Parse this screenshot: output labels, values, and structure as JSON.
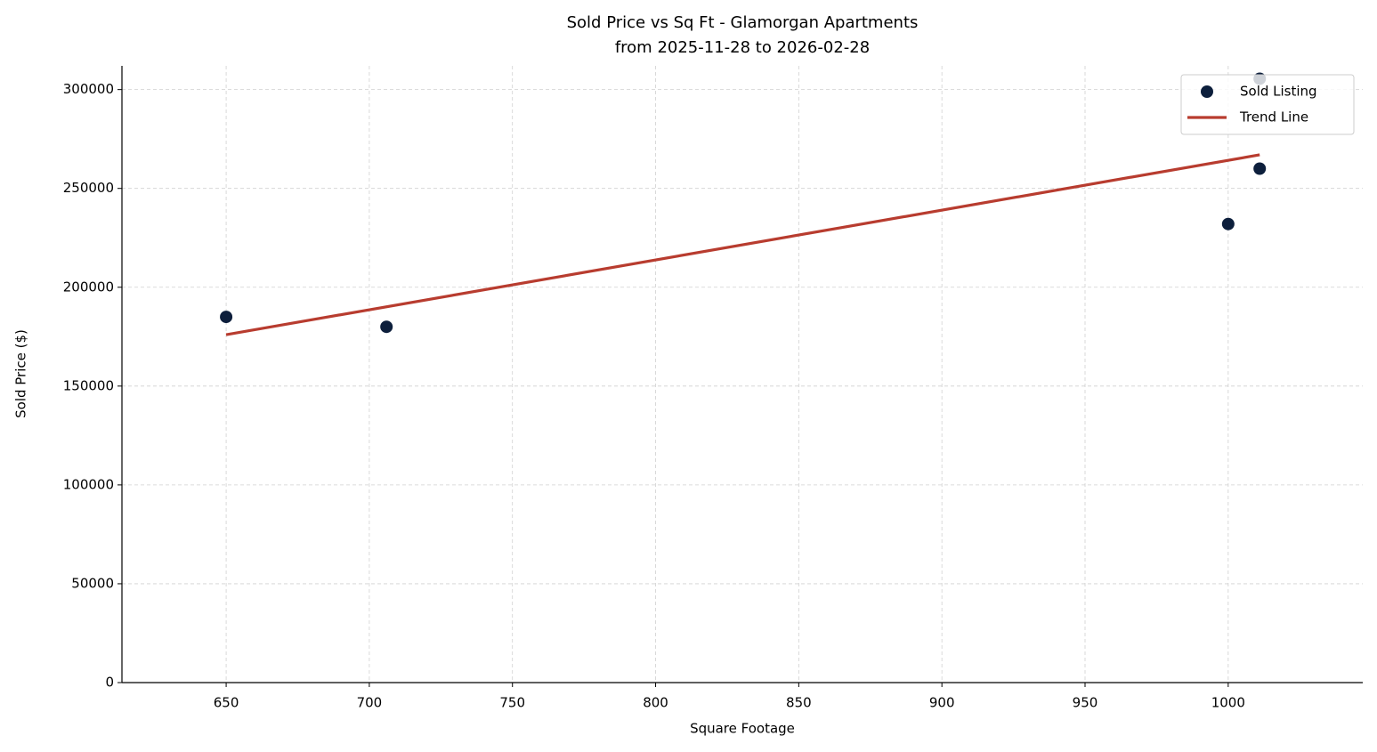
{
  "chart_data": {
    "type": "scatter",
    "title": "Sold Price vs Sq Ft - Glamorgan Apartments",
    "subtitle": "from 2025-11-28 to 2026-02-28",
    "x_label": "Square Footage",
    "y_label": "Sold Price ($)",
    "xlim": [
      613.6,
      1047
    ],
    "xticks": [
      650,
      700,
      750,
      800,
      850,
      900,
      950,
      1000
    ],
    "ylim": [
      0,
      312000
    ],
    "yticks": [
      0,
      50000,
      100000,
      150000,
      200000,
      250000,
      300000
    ],
    "grid": true,
    "legend": "upper right",
    "series": [
      {
        "name": "Sold Listing",
        "type": "scatter",
        "color": "#0d1f3c",
        "x": [
          650,
          706,
          1000,
          1011,
          1011
        ],
        "values": [
          185000,
          180000,
          232000,
          260000,
          305500
        ]
      },
      {
        "name": "Trend Line",
        "type": "line",
        "color": "#b83c2f",
        "x": [
          650,
          1011
        ],
        "values": [
          176000,
          267000
        ]
      }
    ]
  }
}
